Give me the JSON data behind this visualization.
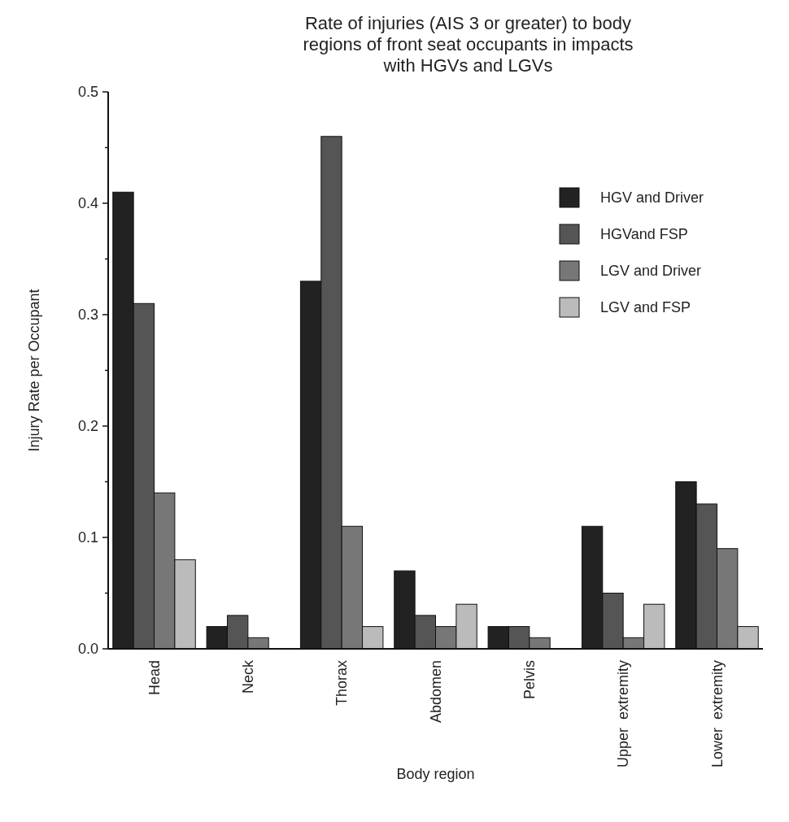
{
  "chart_data": {
    "type": "bar",
    "title": "Rate of injuries (AIS 3 or greater) to body regions of front seat occupants in impacts with HGVs and LGVs",
    "xlabel": "Body region",
    "ylabel": "Injury Rate per Occupant",
    "categories": [
      "Head",
      "Neck",
      "Thorax",
      "Abdomen",
      "Pelvis",
      "Upper  extremity",
      "Lower  extremity"
    ],
    "series": [
      {
        "name": "HGV and Driver",
        "color": "#222222",
        "values": [
          0.41,
          0.02,
          0.33,
          0.07,
          0.02,
          0.11,
          0.15
        ]
      },
      {
        "name": "HGVand FSP",
        "color": "#555555",
        "values": [
          0.31,
          0.03,
          0.46,
          0.03,
          0.02,
          0.05,
          0.13
        ]
      },
      {
        "name": "LGV and Driver",
        "color": "#777777",
        "values": [
          0.14,
          0.01,
          0.11,
          0.02,
          0.01,
          0.01,
          0.09
        ]
      },
      {
        "name": "LGV and FSP",
        "color": "#bbbbbb",
        "values": [
          0.08,
          0,
          0.02,
          0.04,
          0,
          0.04,
          0.02
        ]
      }
    ],
    "ylim": [
      0,
      0.5
    ],
    "yticks": [
      {
        "value": 0,
        "label": "0.0"
      },
      {
        "value": 0.05,
        "label": null
      },
      {
        "value": 0.1,
        "label": "0.1"
      },
      {
        "value": 0.15,
        "label": null
      },
      {
        "value": 0.2,
        "label": "0.2"
      },
      {
        "value": 0.25,
        "label": null
      },
      {
        "value": 0.3,
        "label": "0.3"
      },
      {
        "value": 0.35,
        "label": null
      },
      {
        "value": 0.4,
        "label": "0.4"
      },
      {
        "value": 0.45,
        "label": null
      },
      {
        "value": 0.5,
        "label": "0.5"
      }
    ],
    "legend": "right",
    "grid": false
  }
}
